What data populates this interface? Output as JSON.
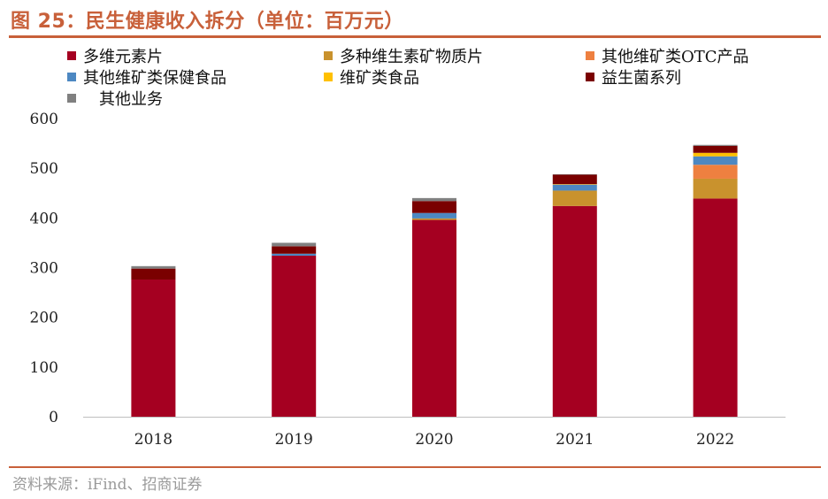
{
  "header": {
    "title": "图 25：民生健康收入拆分（单位：百万元）"
  },
  "footer": {
    "source": "资料来源：iFind、招商证券"
  },
  "chart_data": {
    "type": "bar",
    "stacked": true,
    "title": "图 25：民生健康收入拆分（单位：百万元）",
    "xlabel": "",
    "ylabel": "",
    "ylim": [
      0,
      600
    ],
    "yticks": [
      "0",
      "100",
      "200",
      "300",
      "400",
      "500",
      "600"
    ],
    "categories": [
      "2018",
      "2019",
      "2020",
      "2021",
      "2022"
    ],
    "legend_position": "top",
    "series": [
      {
        "name": "多维元素片",
        "color": "#a50021",
        "values": [
          276,
          324,
          396,
          424,
          439
        ]
      },
      {
        "name": "多种维生素矿物质片",
        "color": "#c9922d",
        "values": [
          0,
          0,
          3,
          31,
          40
        ]
      },
      {
        "name": "其他维矿类OTC产品",
        "color": "#ee8040",
        "values": [
          0,
          0,
          0,
          0,
          28
        ]
      },
      {
        "name": "其他维矿类保健食品",
        "color": "#4d88c2",
        "values": [
          0,
          4,
          11,
          12,
          17
        ]
      },
      {
        "name": "维矿类食品",
        "color": "#ffc000",
        "values": [
          0,
          0,
          0,
          1,
          7
        ]
      },
      {
        "name": "益生菌系列",
        "color": "#7a0000",
        "values": [
          22,
          15,
          24,
          19,
          14
        ]
      },
      {
        "name": "其他业务",
        "color": "#808080",
        "values": [
          5,
          7,
          6,
          1,
          2
        ]
      }
    ]
  }
}
